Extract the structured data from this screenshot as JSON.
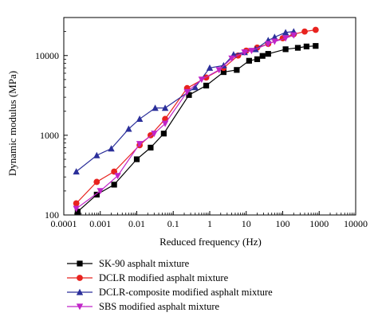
{
  "chart_data": {
    "type": "line",
    "title": "",
    "xlabel": "Reduced frequency (Hz)",
    "ylabel": "Dynamic modulus (MPa)",
    "x_scale": "log",
    "y_scale": "log",
    "xlim": [
      0.0001,
      10000
    ],
    "ylim": [
      100,
      30000
    ],
    "x_ticks": [
      0.0001,
      0.001,
      0.01,
      0.1,
      1,
      10,
      100,
      1000,
      10000
    ],
    "x_tick_labels": [
      "0.0001",
      "0.001",
      "0.01",
      "0.1",
      "1",
      "10",
      "100",
      "1000",
      "10000"
    ],
    "y_ticks": [
      100,
      1000,
      10000
    ],
    "y_tick_labels": [
      "100",
      "1000",
      "10000"
    ],
    "grid": false,
    "legend_position": "bottom",
    "series": [
      {
        "name": "SK-90 asphalt mixture",
        "color": "#000000",
        "marker": "square",
        "x": [
          0.00024,
          0.0008,
          0.0024,
          0.01,
          0.024,
          0.055,
          0.27,
          0.8,
          2.4,
          5.5,
          12,
          20,
          28,
          40,
          120,
          260,
          450,
          800
        ],
        "y": [
          110,
          180,
          240,
          500,
          700,
          1050,
          3200,
          4200,
          6200,
          6600,
          8600,
          9000,
          9900,
          10500,
          12000,
          12500,
          13000,
          13200
        ]
      },
      {
        "name": "DCLR modified asphalt mixture",
        "color": "#e8231f",
        "marker": "circle",
        "x": [
          0.00022,
          0.0008,
          0.0024,
          0.012,
          0.024,
          0.06,
          0.24,
          0.8,
          2.4,
          6,
          10,
          20,
          40,
          100,
          200,
          400,
          800
        ],
        "y": [
          140,
          260,
          350,
          750,
          1000,
          1600,
          3900,
          5300,
          7000,
          10000,
          11500,
          12600,
          14000,
          16500,
          18500,
          20000,
          21000
        ]
      },
      {
        "name": "DCLR-composite modified asphalt mixture",
        "color": "#2b2f9a",
        "marker": "triangle",
        "x": [
          0.00022,
          0.0008,
          0.002,
          0.006,
          0.012,
          0.032,
          0.06,
          0.4,
          1,
          2.4,
          4.5,
          9,
          18,
          40,
          60,
          120,
          200
        ],
        "y": [
          350,
          560,
          680,
          1200,
          1600,
          2200,
          2200,
          4000,
          7000,
          7500,
          10300,
          11000,
          12000,
          15500,
          17000,
          19500,
          20000
        ]
      },
      {
        "name": "SBS modified asphalt mixture",
        "color": "#c025c8",
        "marker": "triangle-down",
        "x": [
          0.00022,
          0.001,
          0.003,
          0.012,
          0.03,
          0.06,
          0.24,
          0.6,
          1.8,
          4,
          9,
          14,
          40,
          60,
          120,
          200
        ],
        "y": [
          120,
          200,
          310,
          780,
          1050,
          1400,
          3500,
          5000,
          6600,
          9200,
          11000,
          11500,
          14000,
          15000,
          16500,
          18000
        ]
      }
    ]
  }
}
